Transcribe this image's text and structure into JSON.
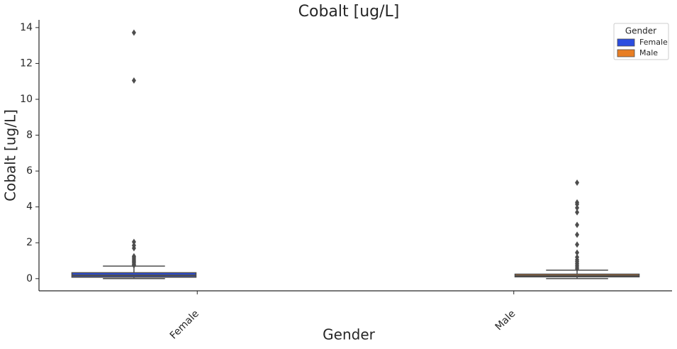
{
  "chart_data": {
    "type": "box",
    "title": "Cobalt [ug/L]",
    "x_label": "Gender",
    "y_label": "Cobalt [ug/L]",
    "categories": [
      "Female",
      "Male"
    ],
    "legend_title": "Gender",
    "legend_position": "upper right",
    "series": [
      {
        "name": "Female",
        "color": "#2a4de0",
        "values": [
          {
            "whislo": 0.0,
            "q1": 0.08,
            "med": 0.18,
            "q3": 0.33,
            "whishi": 0.7,
            "fliers": [
              13.72,
              11.05,
              2.05,
              1.85,
              1.7,
              1.25,
              1.18,
              1.1,
              1.02,
              0.95,
              0.88,
              0.8,
              0.74
            ]
          },
          null
        ]
      },
      {
        "name": "Male",
        "color": "#e87e24",
        "values": [
          null,
          {
            "whislo": 0.0,
            "q1": 0.1,
            "med": 0.15,
            "q3": 0.25,
            "whishi": 0.47,
            "fliers": [
              5.35,
              4.25,
              4.15,
              3.95,
              3.7,
              3.0,
              2.45,
              1.9,
              1.45,
              1.2,
              1.05,
              0.95,
              0.85,
              0.75,
              0.65,
              0.55
            ]
          }
        ]
      }
    ],
    "ylim": [
      -0.68,
      14.43
    ],
    "yticks": [
      0,
      2,
      4,
      6,
      8,
      10,
      12,
      14
    ]
  }
}
